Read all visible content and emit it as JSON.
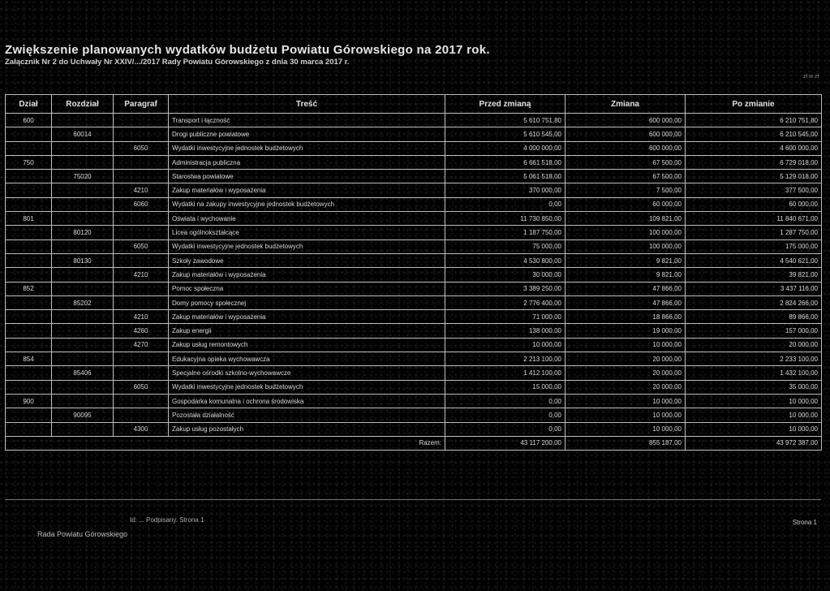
{
  "document": {
    "title": "Zwiększenie planowanych wydatków budżetu Powiatu Górowskiego na 2017 rok.",
    "subtitle": "Załącznik Nr 2 do Uchwały Nr XXIV/.../2017 Rady Powiatu Górowskiego z dnia 30 marca 2017 r.",
    "corner_note": "zł w zł",
    "page_label": "Strona 1",
    "footer_note_1": "Id: ... Podpisany. Strona 1",
    "footer_note_2": "Rada Powiatu Górowskiego"
  },
  "table": {
    "headers": [
      "Dział",
      "Rozdział",
      "Paragraf",
      "Treść",
      "Przed zmianą",
      "Zmiana",
      "Po zmianie"
    ],
    "rows": [
      {
        "dzial": "600",
        "rozdzial": "",
        "paragraf": "",
        "tresc": "Transport i łączność",
        "przed": "5 610 751,80",
        "zmiana": "600 000,00",
        "po": "6 210 751,80"
      },
      {
        "dzial": "",
        "rozdzial": "60014",
        "paragraf": "",
        "tresc": "Drogi publiczne powiatowe",
        "przed": "5 610 545,00",
        "zmiana": "600 000,00",
        "po": "6 210 545,00"
      },
      {
        "dzial": "",
        "rozdzial": "",
        "paragraf": "6050",
        "tresc": "Wydatki inwestycyjne jednostek budżetowych",
        "przed": "4 000 000,00",
        "zmiana": "600 000,00",
        "po": "4 600 000,00"
      },
      {
        "dzial": "750",
        "rozdzial": "",
        "paragraf": "",
        "tresc": "Administracja publiczna",
        "przed": "6 661 518,00",
        "zmiana": "67 500,00",
        "po": "6 729 018,00"
      },
      {
        "dzial": "",
        "rozdzial": "75020",
        "paragraf": "",
        "tresc": "Starostwa powiatowe",
        "przed": "5 061 518,00",
        "zmiana": "67 500,00",
        "po": "5 129 018,00"
      },
      {
        "dzial": "",
        "rozdzial": "",
        "paragraf": "4210",
        "tresc": "Zakup materiałów i wyposażenia",
        "przed": "370 000,00",
        "zmiana": "7 500,00",
        "po": "377 500,00"
      },
      {
        "dzial": "",
        "rozdzial": "",
        "paragraf": "6060",
        "tresc": "Wydatki na zakupy inwestycyjne jednostek budżetowych",
        "przed": "0,00",
        "zmiana": "60 000,00",
        "po": "60 000,00"
      },
      {
        "dzial": "801",
        "rozdzial": "",
        "paragraf": "",
        "tresc": "Oświata i wychowanie",
        "przed": "11 730 850,00",
        "zmiana": "109 821,00",
        "po": "11 840 671,00"
      },
      {
        "dzial": "",
        "rozdzial": "80120",
        "paragraf": "",
        "tresc": "Licea ogólnokształcące",
        "przed": "1 187 750,00",
        "zmiana": "100 000,00",
        "po": "1 287 750,00"
      },
      {
        "dzial": "",
        "rozdzial": "",
        "paragraf": "6050",
        "tresc": "Wydatki inwestycyjne jednostek budżetowych",
        "przed": "75 000,00",
        "zmiana": "100 000,00",
        "po": "175 000,00"
      },
      {
        "dzial": "",
        "rozdzial": "80130",
        "paragraf": "",
        "tresc": "Szkoły zawodowe",
        "przed": "4 530 800,00",
        "zmiana": "9 821,00",
        "po": "4 540 621,00"
      },
      {
        "dzial": "",
        "rozdzial": "",
        "paragraf": "4210",
        "tresc": "Zakup materiałów i wyposażenia",
        "przed": "30 000,00",
        "zmiana": "9 821,00",
        "po": "39 821,00"
      },
      {
        "dzial": "852",
        "rozdzial": "",
        "paragraf": "",
        "tresc": "Pomoc społeczna",
        "przed": "3 389 250,00",
        "zmiana": "47 866,00",
        "po": "3 437 116,00"
      },
      {
        "dzial": "",
        "rozdzial": "85202",
        "paragraf": "",
        "tresc": "Domy pomocy społecznej",
        "przed": "2 776 400,00",
        "zmiana": "47 866,00",
        "po": "2 824 266,00"
      },
      {
        "dzial": "",
        "rozdzial": "",
        "paragraf": "4210",
        "tresc": "Zakup materiałów i wyposażenia",
        "przed": "71 000,00",
        "zmiana": "18 866,00",
        "po": "89 866,00"
      },
      {
        "dzial": "",
        "rozdzial": "",
        "paragraf": "4260",
        "tresc": "Zakup energii",
        "przed": "138 000,00",
        "zmiana": "19 000,00",
        "po": "157 000,00"
      },
      {
        "dzial": "",
        "rozdzial": "",
        "paragraf": "4270",
        "tresc": "Zakup usług remontowych",
        "przed": "10 000,00",
        "zmiana": "10 000,00",
        "po": "20 000,00"
      },
      {
        "dzial": "854",
        "rozdzial": "",
        "paragraf": "",
        "tresc": "Edukacyjna opieka wychowawcza",
        "przed": "2 213 100,00",
        "zmiana": "20 000,00",
        "po": "2 233 100,00"
      },
      {
        "dzial": "",
        "rozdzial": "85406",
        "paragraf": "",
        "tresc": "Specjalne ośrodki szkolno-wychowawcze",
        "przed": "1 412 100,00",
        "zmiana": "20 000,00",
        "po": "1 432 100,00"
      },
      {
        "dzial": "",
        "rozdzial": "",
        "paragraf": "6050",
        "tresc": "Wydatki inwestycyjne jednostek budżetowych",
        "przed": "15 000,00",
        "zmiana": "20 000,00",
        "po": "35 000,00"
      },
      {
        "dzial": "900",
        "rozdzial": "",
        "paragraf": "",
        "tresc": "Gospodarka komunalna i ochrona środowiska",
        "przed": "0,00",
        "zmiana": "10 000,00",
        "po": "10 000,00"
      },
      {
        "dzial": "",
        "rozdzial": "90095",
        "paragraf": "",
        "tresc": "Pozostała działalność",
        "przed": "0,00",
        "zmiana": "10 000,00",
        "po": "10 000,00"
      },
      {
        "dzial": "",
        "rozdzial": "",
        "paragraf": "4300",
        "tresc": "Zakup usług pozostałych",
        "przed": "0,00",
        "zmiana": "10 000,00",
        "po": "10 000,00"
      }
    ],
    "total": {
      "label": "Razem:",
      "przed": "43 117 200,00",
      "zmiana": "855 187,00",
      "po": "43 972 387,00"
    }
  }
}
